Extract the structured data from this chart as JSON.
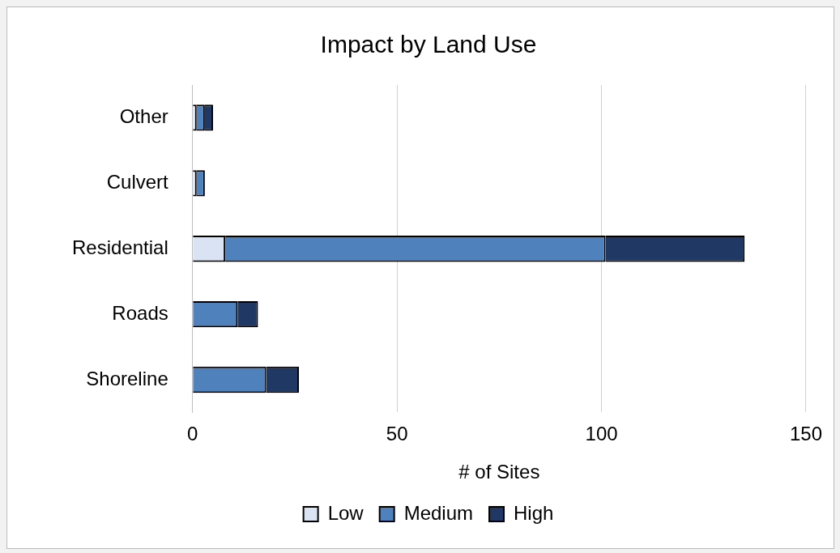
{
  "chart_data": {
    "type": "bar",
    "orientation": "horizontal",
    "stacked": true,
    "title": "Impact by Land Use",
    "xlabel": "# of Sites",
    "categories": [
      "Other",
      "Culvert",
      "Residential",
      "Roads",
      "Shoreline"
    ],
    "series": [
      {
        "name": "Low",
        "color": "#dae3f3",
        "values": [
          1,
          1,
          8,
          0,
          0
        ]
      },
      {
        "name": "Medium",
        "color": "#4f81bd",
        "values": [
          2,
          2,
          93,
          11,
          18
        ]
      },
      {
        "name": "High",
        "color": "#1f3864",
        "values": [
          2,
          0,
          34,
          5,
          8
        ]
      }
    ],
    "xlim": [
      0,
      150
    ],
    "xticks": [
      0,
      50,
      100,
      150
    ],
    "grid": "x",
    "legend": "bottom"
  }
}
